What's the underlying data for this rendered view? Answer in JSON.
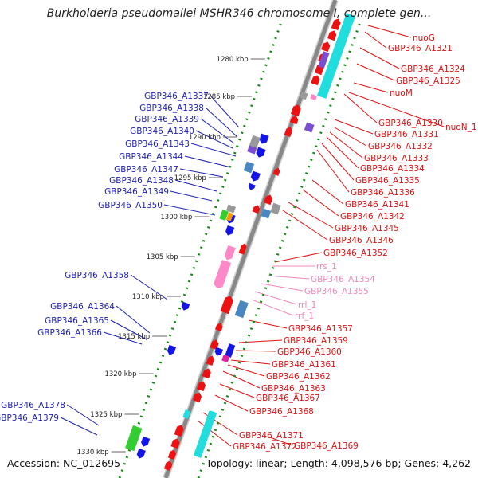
{
  "title": "Burkholderia pseudomallei MSHR346 chromosome I, complete gen...",
  "accession": "Accession: NC_012695",
  "topology": "Topology: linear; Length: 4,098,576 bp; Genes: 4,262",
  "colors": {
    "forward_gene": "#1414e6",
    "reverse_gene": "#ee1111",
    "rna": "#ff88c8",
    "tick": "#118811",
    "backbone": "#888888",
    "label_forward": "#1f1fb5",
    "label_reverse": "#dd1111",
    "label_rna": "#ee88bb"
  },
  "scale_ticks": [
    "1280 kbp",
    "1285 kbp",
    "1290 kbp",
    "1295 kbp",
    "1300 kbp",
    "1305 kbp",
    "1310 kbp",
    "1315 kbp",
    "1320 kbp",
    "1325 kbp",
    "1330 kbp"
  ],
  "left_labels": [
    "GBP346_A1337",
    "GBP346_A1338",
    "GBP346_A1339",
    "GBP346_A1340",
    "GBP346_A1343",
    "GBP346_A1344",
    "GBP346_A1347",
    "GBP346_A1348",
    "GBP346_A1349",
    "GBP346_A1350",
    "GBP346_A1358",
    "GBP346_A1364",
    "GBP346_A1365",
    "GBP346_A1366",
    "GBP346_A1378",
    "GBP346_A1379"
  ],
  "right_labels": [
    "nuoG",
    "GBP346_A1321",
    "GBP346_A1324",
    "GBP346_A1325",
    "nuoM",
    "GBP346_A1330",
    "nuoN_1",
    "GBP346_A1331",
    "GBP346_A1332",
    "GBP346_A1333",
    "GBP346_A1334",
    "GBP346_A1335",
    "GBP346_A1336",
    "GBP346_A1341",
    "GBP346_A1342",
    "GBP346_A1345",
    "GBP346_A1346",
    "GBP346_A1352",
    "GBP346_A1357",
    "GBP346_A1359",
    "GBP346_A1360",
    "GBP346_A1361",
    "GBP346_A1362",
    "GBP346_A1363",
    "GBP346_A1367",
    "GBP346_A1368",
    "GBP346_A1371",
    "GBP346_A1372",
    "GBP346_A1369"
  ],
  "rna_labels": [
    "rrs_1",
    "GBP346_A1354",
    "GBP346_A1355",
    "rrl_1",
    "rrf_1"
  ]
}
